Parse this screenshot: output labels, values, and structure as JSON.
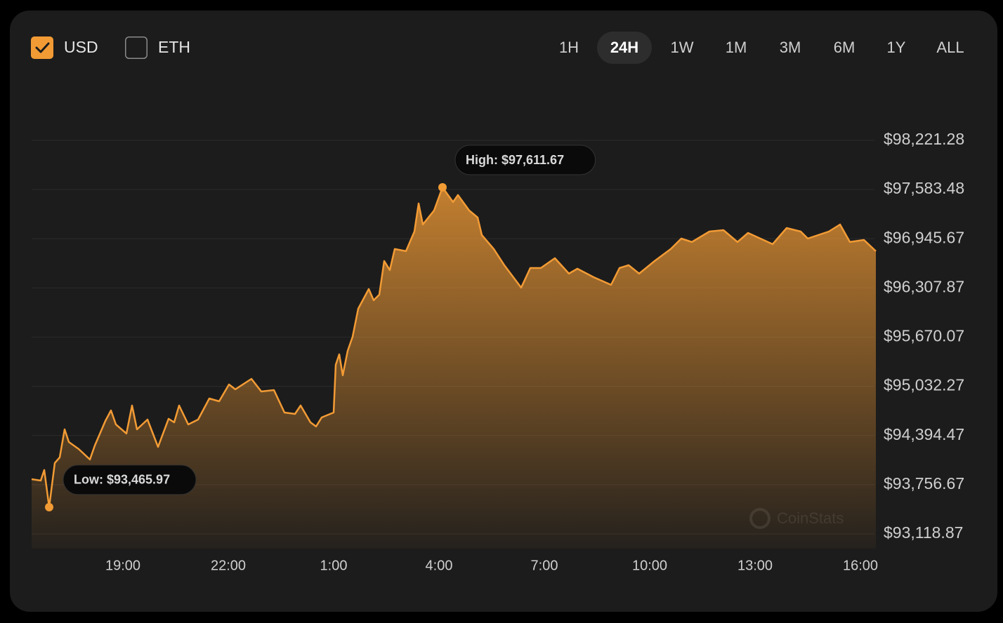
{
  "controls": {
    "currencies": [
      {
        "label": "USD",
        "checked": true
      },
      {
        "label": "ETH",
        "checked": false
      }
    ],
    "ranges": [
      "1H",
      "24H",
      "1W",
      "1M",
      "3M",
      "6M",
      "1Y",
      "ALL"
    ],
    "active_range": "24H"
  },
  "chart_data": {
    "type": "area",
    "color": "#f29b35",
    "grid": true,
    "x": [
      16.4,
      16.66,
      16.76,
      16.9,
      17.06,
      17.2,
      17.34,
      17.46,
      17.74,
      18.06,
      18.2,
      18.5,
      18.66,
      18.8,
      19.1,
      19.26,
      19.4,
      19.7,
      20,
      20.3,
      20.46,
      20.6,
      20.86,
      21.14,
      21.46,
      21.74,
      22.02,
      22.2,
      22.66,
      22.94,
      23.3,
      23.6,
      23.9,
      24.06,
      24.34,
      24.5,
      24.66,
      25,
      25.06,
      25.16,
      25.26,
      25.4,
      25.54,
      25.7,
      26,
      26.14,
      26.3,
      26.44,
      26.6,
      26.74,
      27.06,
      27.3,
      27.42,
      27.54,
      27.86,
      28.1,
      28.4,
      28.54,
      28.86,
      29.1,
      29.22,
      29.56,
      29.86,
      30.34,
      30.6,
      30.9,
      31.3,
      31.7,
      31.94,
      32.4,
      32.9,
      33.14,
      33.4,
      33.7,
      34.14,
      34.6,
      34.9,
      35.2,
      35.7,
      36.1,
      36.5,
      36.8,
      37.5,
      37.9,
      38.3,
      38.5,
      39.1,
      39.42,
      39.7,
      40.1,
      40.44
    ],
    "values": [
      93828,
      93810,
      93947,
      93465.97,
      94038,
      94110,
      94474,
      94310,
      94219,
      94083,
      94265,
      94583,
      94720,
      94538,
      94420,
      94783,
      94474,
      94601,
      94247,
      94611,
      94565,
      94783,
      94538,
      94601,
      94874,
      94838,
      95056,
      94993,
      95129,
      94965,
      94983,
      94692,
      94674,
      94783,
      94565,
      94511,
      94629,
      94692,
      95311,
      95447,
      95174,
      95493,
      95675,
      96038,
      96293,
      96148,
      96220,
      96657,
      96539,
      96812,
      96784,
      97039,
      97403,
      97130,
      97312,
      97611.67,
      97421,
      97512,
      97312,
      97221,
      96993,
      96812,
      96602,
      96311,
      96566,
      96566,
      96693,
      96493,
      96557,
      96448,
      96348,
      96566,
      96602,
      96493,
      96657,
      96812,
      96948,
      96903,
      97039,
      97057,
      96903,
      97021,
      96875,
      97084,
      97039,
      96948,
      97039,
      97130,
      96903,
      96930,
      96784
    ],
    "xlim": [
      16.4,
      40.44
    ],
    "xticks": [
      {
        "value": 19,
        "label": "19:00"
      },
      {
        "value": 22,
        "label": "22:00"
      },
      {
        "value": 25,
        "label": "1:00"
      },
      {
        "value": 28,
        "label": "4:00"
      },
      {
        "value": 31,
        "label": "7:00"
      },
      {
        "value": 34,
        "label": "10:00"
      },
      {
        "value": 37,
        "label": "13:00"
      },
      {
        "value": 40,
        "label": "16:00"
      }
    ],
    "ylim": [
      93118.87,
      98221.28
    ],
    "yticks": [
      {
        "value": 93118.87,
        "label": "$93,118.87"
      },
      {
        "value": 93756.67,
        "label": "$93,756.67"
      },
      {
        "value": 94394.47,
        "label": "$94,394.47"
      },
      {
        "value": 95032.27,
        "label": "$95,032.27"
      },
      {
        "value": 95670.07,
        "label": "$95,670.07"
      },
      {
        "value": 96307.87,
        "label": "$96,307.87"
      },
      {
        "value": 96945.67,
        "label": "$96,945.67"
      },
      {
        "value": 97583.48,
        "label": "$97,583.48"
      },
      {
        "value": 98221.28,
        "label": "$98,221.28"
      }
    ],
    "annotations": [
      {
        "kind": "high",
        "text": "High: $97,611.67"
      },
      {
        "kind": "low",
        "text": "Low: $93,465.97"
      }
    ],
    "watermark": "CoinStats"
  }
}
